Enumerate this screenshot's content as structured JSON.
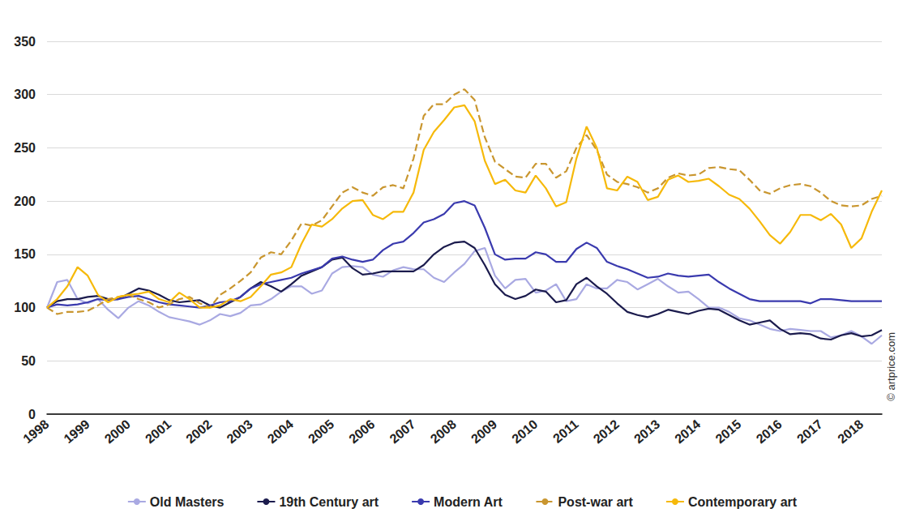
{
  "chart_data": {
    "type": "line",
    "source": "© artprice.com",
    "categories": [
      "1998",
      null,
      null,
      null,
      "1999",
      null,
      null,
      null,
      "2000",
      null,
      null,
      null,
      "2001",
      null,
      null,
      null,
      "2002",
      null,
      null,
      null,
      "2003",
      null,
      null,
      null,
      "2004",
      null,
      null,
      null,
      "2005",
      null,
      null,
      null,
      "2006",
      null,
      null,
      null,
      "2007",
      null,
      null,
      null,
      "2008",
      null,
      null,
      null,
      "2009",
      null,
      null,
      null,
      "2010",
      null,
      null,
      null,
      "2011",
      null,
      null,
      null,
      "2012",
      null,
      null,
      null,
      "2013",
      null,
      null,
      null,
      "2014",
      null,
      null,
      null,
      "2015",
      null,
      null,
      null,
      "2016",
      null,
      null,
      null,
      "2017",
      null,
      null,
      null,
      "2018",
      null,
      null
    ],
    "ylim": [
      0,
      350
    ],
    "yticks": [
      0,
      50,
      100,
      150,
      200,
      250,
      300,
      350
    ],
    "grid": true,
    "legend": "bottom",
    "marker": "none",
    "series": [
      {
        "name": "Old Masters",
        "color": "#a9a9e2",
        "line_style": "solid",
        "values": [
          100,
          124,
          126,
          108,
          104,
          108,
          98,
          90,
          100,
          106,
          102,
          96,
          91,
          89,
          87,
          84,
          88,
          94,
          92,
          95,
          102,
          103,
          108,
          115,
          120,
          120,
          113,
          116,
          132,
          138,
          139,
          138,
          131,
          129,
          135,
          138,
          136,
          136,
          128,
          124,
          133,
          141,
          153,
          156,
          130,
          118,
          126,
          127,
          114,
          116,
          122,
          106,
          108,
          122,
          118,
          118,
          126,
          124,
          117,
          122,
          127,
          120,
          114,
          115,
          108,
          100,
          100,
          96,
          90,
          88,
          84,
          80,
          78,
          80,
          79,
          78,
          78,
          72,
          74,
          78,
          73,
          66,
          74
        ]
      },
      {
        "name": "19th Century art",
        "color": "#1b1b4d",
        "line_style": "solid",
        "values": [
          100,
          106,
          108,
          108,
          110,
          111,
          108,
          108,
          113,
          118,
          116,
          112,
          107,
          105,
          106,
          107,
          102,
          100,
          105,
          110,
          118,
          124,
          120,
          115,
          122,
          130,
          134,
          138,
          145,
          147,
          137,
          131,
          132,
          134,
          134,
          134,
          134,
          140,
          150,
          157,
          161,
          162,
          156,
          140,
          122,
          112,
          108,
          111,
          117,
          115,
          105,
          107,
          122,
          128,
          120,
          113,
          104,
          96,
          93,
          91,
          94,
          98,
          96,
          94,
          97,
          99,
          98,
          93,
          88,
          84,
          86,
          88,
          80,
          75,
          76,
          75,
          71,
          70,
          74,
          76,
          73,
          74,
          79
        ]
      },
      {
        "name": "Modern Art",
        "color": "#3a3aae",
        "line_style": "solid",
        "values": [
          100,
          103,
          102,
          103,
          105,
          108,
          107,
          108,
          110,
          111,
          108,
          105,
          103,
          102,
          101,
          100,
          102,
          105,
          106,
          110,
          118,
          122,
          124,
          126,
          128,
          132,
          135,
          138,
          146,
          148,
          145,
          143,
          145,
          154,
          160,
          162,
          170,
          180,
          183,
          188,
          198,
          200,
          196,
          175,
          150,
          145,
          146,
          146,
          152,
          150,
          143,
          143,
          155,
          161,
          156,
          143,
          139,
          136,
          132,
          128,
          129,
          132,
          130,
          129,
          130,
          131,
          124,
          118,
          113,
          108,
          106,
          106,
          106,
          106,
          106,
          104,
          108,
          108,
          107,
          106,
          106,
          106,
          106
        ]
      },
      {
        "name": "Post-war art",
        "color": "#c9962f",
        "line_style": "dashed",
        "values": [
          100,
          94,
          96,
          96,
          97,
          102,
          108,
          110,
          112,
          108,
          105,
          100,
          103,
          108,
          110,
          104,
          100,
          112,
          118,
          125,
          133,
          147,
          152,
          150,
          163,
          179,
          177,
          182,
          195,
          208,
          213,
          208,
          205,
          213,
          215,
          212,
          240,
          280,
          291,
          291,
          300,
          305,
          295,
          260,
          237,
          230,
          223,
          222,
          235,
          235,
          222,
          228,
          250,
          262,
          248,
          225,
          218,
          216,
          213,
          208,
          212,
          222,
          226,
          224,
          225,
          231,
          232,
          230,
          229,
          220,
          210,
          207,
          212,
          215,
          216,
          214,
          208,
          200,
          196,
          195,
          196,
          202,
          205
        ]
      },
      {
        "name": "Contemporary art",
        "color": "#f6b90a",
        "line_style": "solid",
        "values": [
          100,
          108,
          120,
          138,
          130,
          112,
          105,
          110,
          112,
          113,
          115,
          108,
          105,
          114,
          108,
          100,
          100,
          102,
          108,
          106,
          110,
          120,
          131,
          133,
          138,
          160,
          178,
          176,
          183,
          193,
          200,
          201,
          187,
          183,
          190,
          190,
          208,
          248,
          265,
          276,
          288,
          290,
          275,
          238,
          216,
          220,
          210,
          208,
          224,
          212,
          195,
          199,
          240,
          270,
          250,
          212,
          210,
          223,
          218,
          201,
          204,
          220,
          224,
          218,
          219,
          221,
          214,
          206,
          202,
          193,
          181,
          168,
          160,
          171,
          187,
          187,
          182,
          188,
          178,
          156,
          165,
          190,
          210
        ]
      }
    ]
  }
}
